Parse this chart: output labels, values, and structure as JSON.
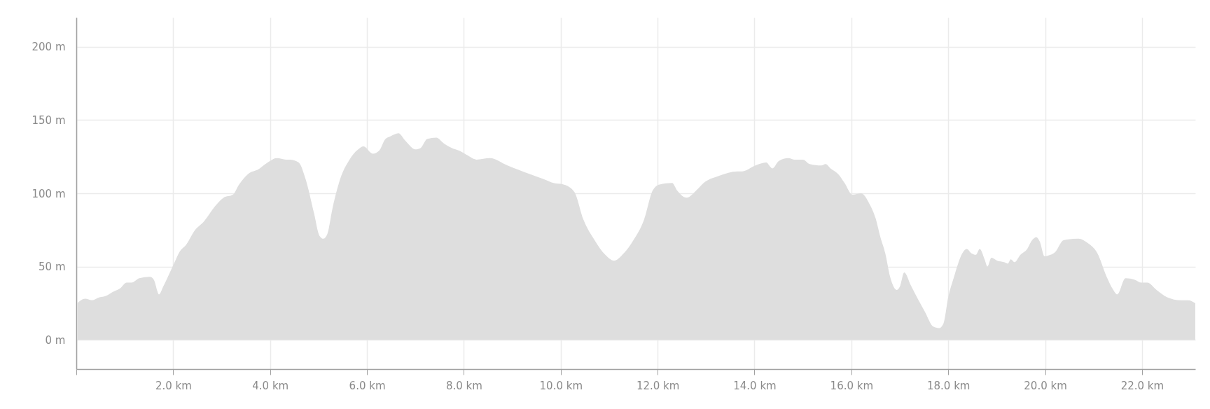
{
  "chart_data": {
    "type": "area",
    "color": "#dedede",
    "x": [
      0.02,
      0.18,
      0.32,
      0.48,
      0.61,
      0.77,
      0.9,
      1.04,
      1.14,
      1.3,
      1.52,
      1.6,
      1.71,
      1.79,
      1.89,
      2.03,
      2.13,
      2.27,
      2.43,
      2.64,
      2.86,
      3.04,
      3.23,
      3.36,
      3.58,
      3.74,
      3.95,
      4.14,
      4.33,
      4.41,
      4.59,
      4.73,
      4.91,
      5.02,
      5.1,
      5.18,
      5.29,
      5.45,
      5.64,
      5.82,
      5.93,
      6.12,
      6.25,
      6.38,
      6.49,
      6.65,
      6.79,
      7.0,
      7.11,
      7.24,
      7.43,
      7.59,
      7.75,
      7.91,
      8.07,
      8.26,
      8.54,
      8.9,
      9.13,
      9.37,
      9.7,
      9.85,
      10.06,
      10.28,
      10.47,
      10.7,
      10.92,
      11.1,
      11.3,
      11.5,
      11.72,
      11.9,
      12.04,
      12.3,
      12.4,
      12.6,
      12.8,
      12.95,
      13.27,
      13.65,
      13.75,
      14.02,
      14.24,
      14.37,
      14.5,
      14.7,
      14.82,
      15.0,
      15.14,
      15.38,
      15.47,
      15.57,
      15.73,
      15.86,
      16.02,
      16.2,
      16.37,
      16.5,
      16.6,
      16.7,
      16.8,
      16.94,
      17.01,
      17.09,
      17.23,
      17.37,
      17.52,
      17.69,
      17.81,
      17.9,
      18.0,
      18.12,
      18.29,
      18.38,
      18.48,
      18.57,
      18.65,
      18.75,
      18.81,
      18.89,
      19.01,
      19.15,
      19.23,
      19.29,
      19.37,
      19.49,
      19.63,
      19.73,
      19.82,
      19.89,
      19.99,
      20.11,
      20.21,
      20.38,
      20.69,
      20.88,
      21.08,
      21.27,
      21.39,
      21.49,
      21.66,
      21.85,
      21.99,
      22.11,
      22.3,
      22.52,
      22.8,
      22.95,
      23.1
    ],
    "values": [
      25,
      28,
      27,
      29,
      30,
      33,
      35,
      39,
      39,
      42,
      43,
      41,
      31,
      36,
      43,
      53,
      60,
      65,
      74,
      81,
      91,
      97,
      99,
      106,
      114,
      116,
      121,
      124,
      123,
      123,
      121,
      110,
      86,
      71,
      69,
      72,
      90,
      110,
      123,
      130,
      132,
      127,
      129,
      137,
      139,
      141,
      136,
      130,
      131,
      137,
      138,
      134,
      131,
      129,
      126,
      123,
      124,
      119,
      116,
      113,
      109,
      107,
      106,
      101,
      82,
      68,
      58,
      54,
      59,
      68,
      82,
      102,
      106,
      107,
      102,
      97,
      102,
      107,
      112,
      115,
      115,
      119,
      121,
      117,
      122,
      124,
      123,
      123,
      120,
      119,
      120,
      117,
      113,
      107,
      99,
      100,
      93,
      83,
      70,
      59,
      43,
      34,
      37,
      46,
      37,
      28,
      19,
      9,
      8,
      11,
      29,
      43,
      59,
      62,
      59,
      58,
      62,
      55,
      50,
      56,
      54,
      53,
      52,
      55,
      53,
      58,
      62,
      68,
      70,
      67,
      57,
      58,
      60,
      68,
      69,
      66,
      59,
      43,
      35,
      31,
      42,
      41,
      39,
      39,
      34,
      29,
      27,
      27,
      25
    ],
    "xlim": [
      0,
      23.1
    ],
    "ylim": [
      -20,
      220
    ],
    "xticks": [
      {
        "value": 0,
        "label": null
      },
      {
        "value": 2,
        "label": "2.0 km"
      },
      {
        "value": 4,
        "label": "4.0 km"
      },
      {
        "value": 6,
        "label": "6.0 km"
      },
      {
        "value": 8,
        "label": "8.0 km"
      },
      {
        "value": 10,
        "label": "10.0 km"
      },
      {
        "value": 12,
        "label": "12.0 km"
      },
      {
        "value": 14,
        "label": "14.0 km"
      },
      {
        "value": 16,
        "label": "16.0 km"
      },
      {
        "value": 18,
        "label": "18.0 km"
      },
      {
        "value": 20,
        "label": "20.0 km"
      },
      {
        "value": 22,
        "label": "22.0 km"
      }
    ],
    "yticks": [
      {
        "value": 0,
        "label": "0 m"
      },
      {
        "value": 50,
        "label": "50 m"
      },
      {
        "value": 100,
        "label": "100 m"
      },
      {
        "value": 150,
        "label": "150 m"
      },
      {
        "value": 200,
        "label": "200 m"
      }
    ],
    "grid": true
  }
}
